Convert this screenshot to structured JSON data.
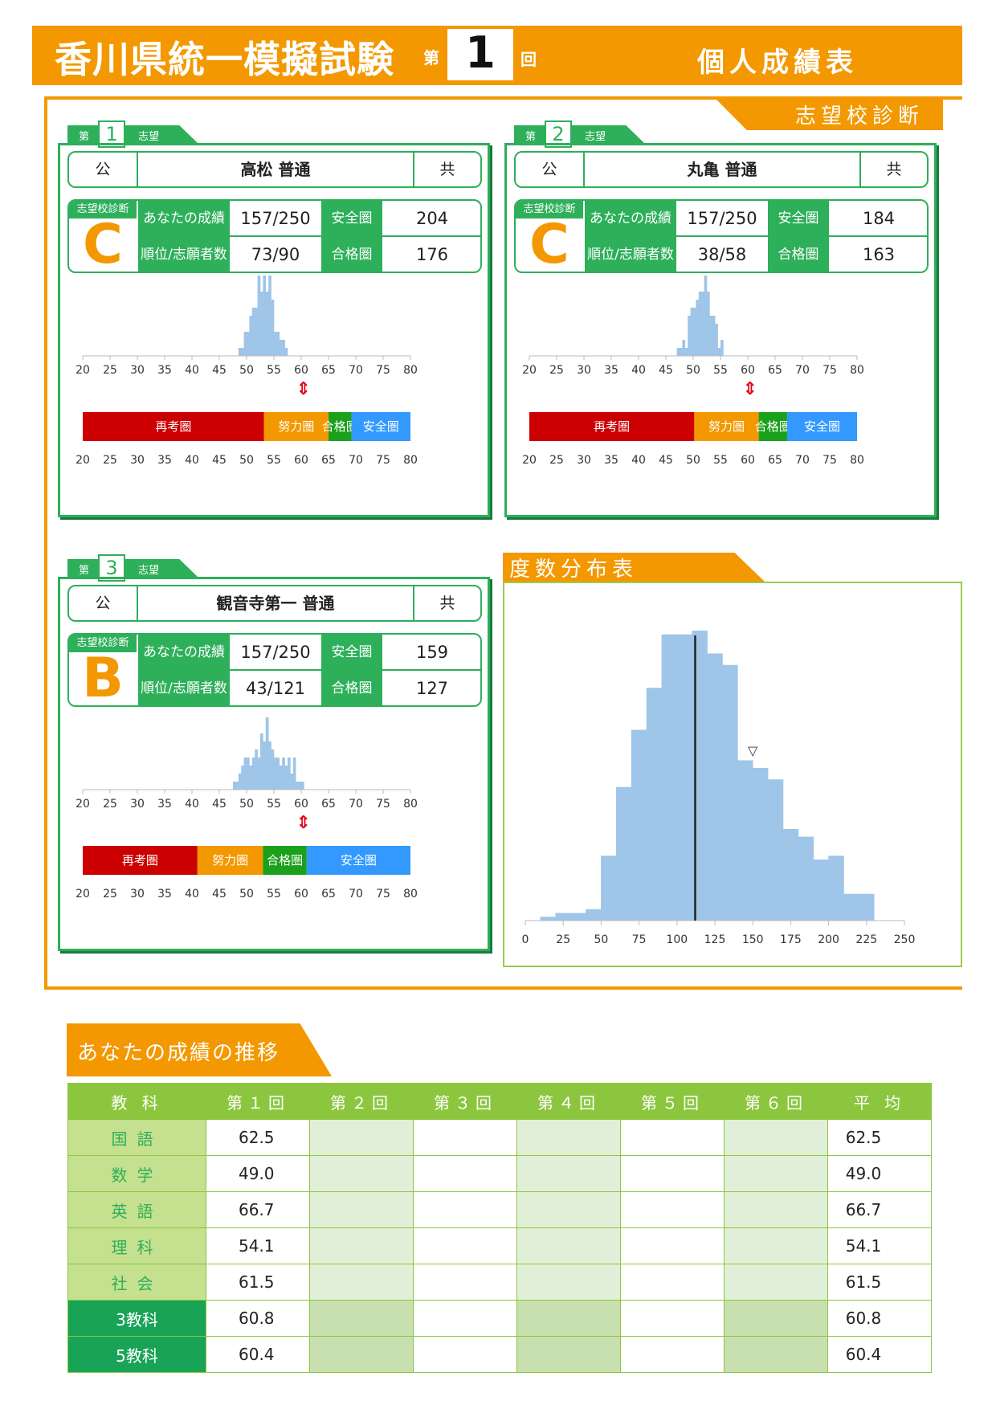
{
  "header": {
    "title": "香川県統一模擬試験",
    "dai": "第",
    "number": "1",
    "kai": "回",
    "subtitle": "個人成績表"
  },
  "diagnosis_label": "志望校診断",
  "schools": [
    {
      "rank_prefix": "第",
      "rank": "1",
      "rank_suffix": "志望",
      "type": "公",
      "name": "高松 普通",
      "sex": "共",
      "diag_label": "志望校診断",
      "grade": "C",
      "score_label": "あなたの成績",
      "score": "157/250",
      "rank_label": "順位/志願者数",
      "rank_value": "73/90",
      "safe_label": "安全圏",
      "safe": "204",
      "pass_label": "合格圏",
      "pass": "176",
      "distribution": [
        0,
        0,
        0,
        0,
        0,
        0,
        0,
        0,
        0,
        0,
        0,
        0,
        0,
        0,
        0,
        0,
        0,
        0,
        0,
        0,
        0,
        0,
        0,
        0,
        0,
        0,
        0,
        0,
        0,
        0,
        0,
        0,
        0,
        0,
        0,
        0,
        0,
        0,
        0,
        0,
        0,
        0,
        0,
        0,
        0,
        0,
        0,
        0,
        0,
        0,
        0,
        0,
        0,
        0,
        0,
        0,
        0,
        1,
        1,
        3,
        3,
        5,
        6,
        6,
        10,
        8,
        10,
        8,
        10,
        7,
        3,
        3,
        2,
        2,
        1
      ],
      "marker": 60.4,
      "zone_labels": [
        "再考圏",
        "努力圏",
        "合格圏",
        "安全圏"
      ],
      "zones": [
        [
          20,
          53.2
        ],
        [
          53.2,
          65
        ],
        [
          65,
          69.2
        ],
        [
          69.2,
          80
        ]
      ],
      "ticks": [
        20,
        25,
        30,
        35,
        40,
        45,
        50,
        55,
        60,
        65,
        70,
        75,
        80
      ]
    },
    {
      "rank_prefix": "第",
      "rank": "2",
      "rank_suffix": "志望",
      "type": "公",
      "name": "丸亀 普通",
      "sex": "共",
      "diag_label": "志望校診断",
      "grade": "C",
      "score_label": "あなたの成績",
      "score": "157/250",
      "rank_label": "順位/志願者数",
      "rank_value": "38/58",
      "safe_label": "安全圏",
      "safe": "184",
      "pass_label": "合格圏",
      "pass": "163",
      "distribution": [
        0,
        0,
        0,
        0,
        0,
        0,
        0,
        0,
        0,
        0,
        0,
        0,
        0,
        0,
        0,
        0,
        0,
        0,
        0,
        0,
        0,
        0,
        0,
        0,
        0,
        0,
        0,
        0,
        0,
        0,
        0,
        0,
        0,
        0,
        0,
        0,
        0,
        0,
        0,
        0,
        0,
        0,
        0,
        0,
        0,
        0,
        0,
        0,
        0,
        0,
        0,
        0,
        0,
        0,
        1,
        1,
        2,
        1,
        5,
        6,
        6,
        7,
        8,
        8,
        10,
        8,
        5,
        5,
        4,
        1,
        2
      ],
      "marker": 60.4,
      "zone_labels": [
        "再考圏",
        "努力圏",
        "合格圏",
        "安全圏"
      ],
      "zones": [
        [
          20,
          50.2
        ],
        [
          50.2,
          62
        ],
        [
          62,
          67.2
        ],
        [
          67.2,
          80
        ]
      ],
      "ticks": [
        20,
        25,
        30,
        35,
        40,
        45,
        50,
        55,
        60,
        65,
        70,
        75,
        80
      ]
    },
    {
      "rank_prefix": "第",
      "rank": "3",
      "rank_suffix": "志望",
      "type": "公",
      "name": "観音寺第一 普通",
      "sex": "共",
      "diag_label": "志望校診断",
      "grade": "B",
      "score_label": "あなたの成績",
      "score": "157/250",
      "rank_label": "順位/志願者数",
      "rank_value": "43/121",
      "safe_label": "安全圏",
      "safe": "159",
      "pass_label": "合格圏",
      "pass": "127",
      "distribution": [
        0,
        0,
        0,
        0,
        0,
        0,
        0,
        0,
        0,
        0,
        0,
        0,
        0,
        0,
        0,
        0,
        0,
        0,
        0,
        0,
        0,
        0,
        0,
        0,
        0,
        0,
        0,
        0,
        0,
        0,
        0,
        0,
        0,
        0,
        0,
        0,
        0,
        0,
        0,
        0,
        0,
        0,
        0,
        0,
        0,
        0,
        0,
        0,
        0,
        0,
        0,
        0,
        0,
        0,
        0,
        1,
        1,
        2,
        3,
        4,
        4,
        3,
        4,
        5,
        4,
        7,
        6,
        9,
        6,
        5,
        4,
        4,
        3,
        4,
        3,
        4,
        2,
        4,
        1,
        1,
        1
      ],
      "marker": 60.4,
      "zone_labels": [
        "再考圏",
        "努力圏",
        "合格圏",
        "安全圏"
      ],
      "zones": [
        [
          20,
          41
        ],
        [
          41,
          53
        ],
        [
          53,
          61
        ],
        [
          61,
          80
        ]
      ],
      "ticks": [
        20,
        25,
        30,
        35,
        40,
        45,
        50,
        55,
        60,
        65,
        70,
        75,
        80
      ]
    }
  ],
  "frequency": {
    "title": "度数分布表",
    "bins": [
      10,
      20,
      30,
      40,
      50,
      60,
      70,
      80,
      90,
      100,
      110,
      120,
      130,
      140,
      150,
      160,
      170,
      180,
      190,
      200,
      210,
      220
    ],
    "counts": [
      1,
      2,
      2,
      3,
      17,
      35,
      50,
      61,
      75,
      75,
      76,
      70,
      67,
      42,
      40,
      37,
      24,
      22,
      16,
      17,
      7,
      7
    ],
    "your_score": 112,
    "marker": 150,
    "ticks": [
      0,
      25,
      50,
      75,
      100,
      125,
      150,
      175,
      200,
      225,
      250
    ]
  },
  "trend": {
    "title": "あなたの成績の推移",
    "headers": [
      "教 科",
      "第１回",
      "第２回",
      "第３回",
      "第４回",
      "第５回",
      "第６回",
      "平 均"
    ],
    "rows": [
      {
        "subject": "国語",
        "values": [
          "62.5",
          "",
          "",
          "",
          "",
          ""
        ],
        "avg": "62.5"
      },
      {
        "subject": "数学",
        "values": [
          "49.0",
          "",
          "",
          "",
          "",
          ""
        ],
        "avg": "49.0"
      },
      {
        "subject": "英語",
        "values": [
          "66.7",
          "",
          "",
          "",
          "",
          ""
        ],
        "avg": "66.7"
      },
      {
        "subject": "理科",
        "values": [
          "54.1",
          "",
          "",
          "",
          "",
          ""
        ],
        "avg": "54.1"
      },
      {
        "subject": "社会",
        "values": [
          "61.5",
          "",
          "",
          "",
          "",
          ""
        ],
        "avg": "61.5"
      },
      {
        "subject": "3教科",
        "values": [
          "60.8",
          "",
          "",
          "",
          "",
          ""
        ],
        "avg": "60.8"
      },
      {
        "subject": "5教科",
        "values": [
          "60.4",
          "",
          "",
          "",
          "",
          ""
        ],
        "avg": "60.4"
      }
    ]
  },
  "colors": {
    "orange": "#f39800",
    "green": "#2eaf5a",
    "lightgreen": "#8cc63f",
    "bar": "#9fc5e8",
    "zone_red": "#cc0000",
    "zone_orange": "#f39800",
    "zone_green": "#1aa01a",
    "zone_blue": "#3399ff"
  }
}
